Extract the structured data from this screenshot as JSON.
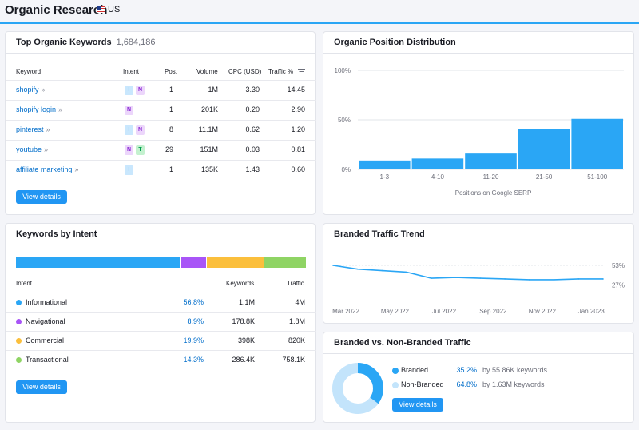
{
  "header": {
    "title": "Organic Research",
    "database": "US"
  },
  "top_keywords": {
    "title": "Top Organic Keywords",
    "count": "1,684,186",
    "columns": {
      "keyword": "Keyword",
      "intent": "Intent",
      "pos": "Pos.",
      "volume": "Volume",
      "cpc": "CPC (USD)",
      "traffic": "Traffic %"
    },
    "rows": [
      {
        "keyword": "shopify",
        "intents": [
          "I",
          "N"
        ],
        "pos": "1",
        "volume": "1M",
        "cpc": "3.30",
        "traffic": "14.45"
      },
      {
        "keyword": "shopify login",
        "intents": [
          "N"
        ],
        "pos": "1",
        "volume": "201K",
        "cpc": "0.20",
        "traffic": "2.90"
      },
      {
        "keyword": "pinterest",
        "intents": [
          "I",
          "N"
        ],
        "pos": "8",
        "volume": "11.1M",
        "cpc": "0.62",
        "traffic": "1.20"
      },
      {
        "keyword": "youtube",
        "intents": [
          "N",
          "T"
        ],
        "pos": "29",
        "volume": "151M",
        "cpc": "0.03",
        "traffic": "0.81"
      },
      {
        "keyword": "affiliate marketing",
        "intents": [
          "I"
        ],
        "pos": "1",
        "volume": "135K",
        "cpc": "1.43",
        "traffic": "0.60"
      }
    ],
    "button": "View details"
  },
  "position_distribution": {
    "title": "Organic Position Distribution",
    "chart_data": {
      "type": "bar",
      "title": "Organic Position Distribution",
      "categories": [
        "1-3",
        "4-10",
        "11-20",
        "21-50",
        "51-100"
      ],
      "values": [
        9,
        11,
        16,
        41,
        51
      ],
      "xlabel": "Positions on Google SERP",
      "ylabel": "",
      "ylim": [
        0,
        100
      ],
      "yticks": [
        "100%",
        "50%",
        "0%"
      ]
    }
  },
  "intent": {
    "title": "Keywords by Intent",
    "columns": {
      "intent": "Intent",
      "keywords": "Keywords",
      "traffic": "Traffic"
    },
    "rows": [
      {
        "label": "Informational",
        "pct": "56.8%",
        "keywords": "1.1M",
        "traffic": "4M",
        "color": "#2aa6f5",
        "share": 56.8
      },
      {
        "label": "Navigational",
        "pct": "8.9%",
        "keywords": "178.8K",
        "traffic": "1.8M",
        "color": "#a855f7",
        "share": 8.9
      },
      {
        "label": "Commercial",
        "pct": "19.9%",
        "keywords": "398K",
        "traffic": "820K",
        "color": "#fbbf3c",
        "share": 19.9
      },
      {
        "label": "Transactional",
        "pct": "14.3%",
        "keywords": "286.4K",
        "traffic": "758.1K",
        "color": "#8fd464",
        "share": 14.3
      }
    ],
    "button": "View details"
  },
  "branded_trend": {
    "title": "Branded Traffic Trend",
    "chart_data": {
      "type": "line",
      "title": "Branded Traffic Trend",
      "x": [
        "Mar 2022",
        "Apr 2022",
        "May 2022",
        "Jun 2022",
        "Jul 2022",
        "Aug 2022",
        "Sep 2022",
        "Oct 2022",
        "Nov 2022",
        "Dec 2022",
        "Jan 2023",
        "Feb 2023"
      ],
      "values": [
        53,
        48,
        46,
        44,
        36,
        37,
        36,
        35,
        34,
        34,
        35,
        35
      ],
      "xticks": [
        "Mar 2022",
        "May 2022",
        "Jul 2022",
        "Sep 2022",
        "Nov 2022",
        "Jan 2023"
      ],
      "yticks": [
        "53%",
        "27%"
      ],
      "ylim": [
        0,
        53
      ]
    }
  },
  "branded_vs": {
    "title": "Branded vs. Non-Branded Traffic",
    "chart_data": {
      "type": "pie",
      "categories": [
        "Branded",
        "Non-Branded"
      ],
      "values": [
        35.2,
        64.8
      ]
    },
    "items": [
      {
        "label": "Branded",
        "pct": "35.2%",
        "keywords": "by 55.86K keywords",
        "color": "#2aa6f5"
      },
      {
        "label": "Non-Branded",
        "pct": "64.8%",
        "keywords": "by 1.63M keywords",
        "color": "#c3e4fb"
      }
    ],
    "button": "View details"
  }
}
